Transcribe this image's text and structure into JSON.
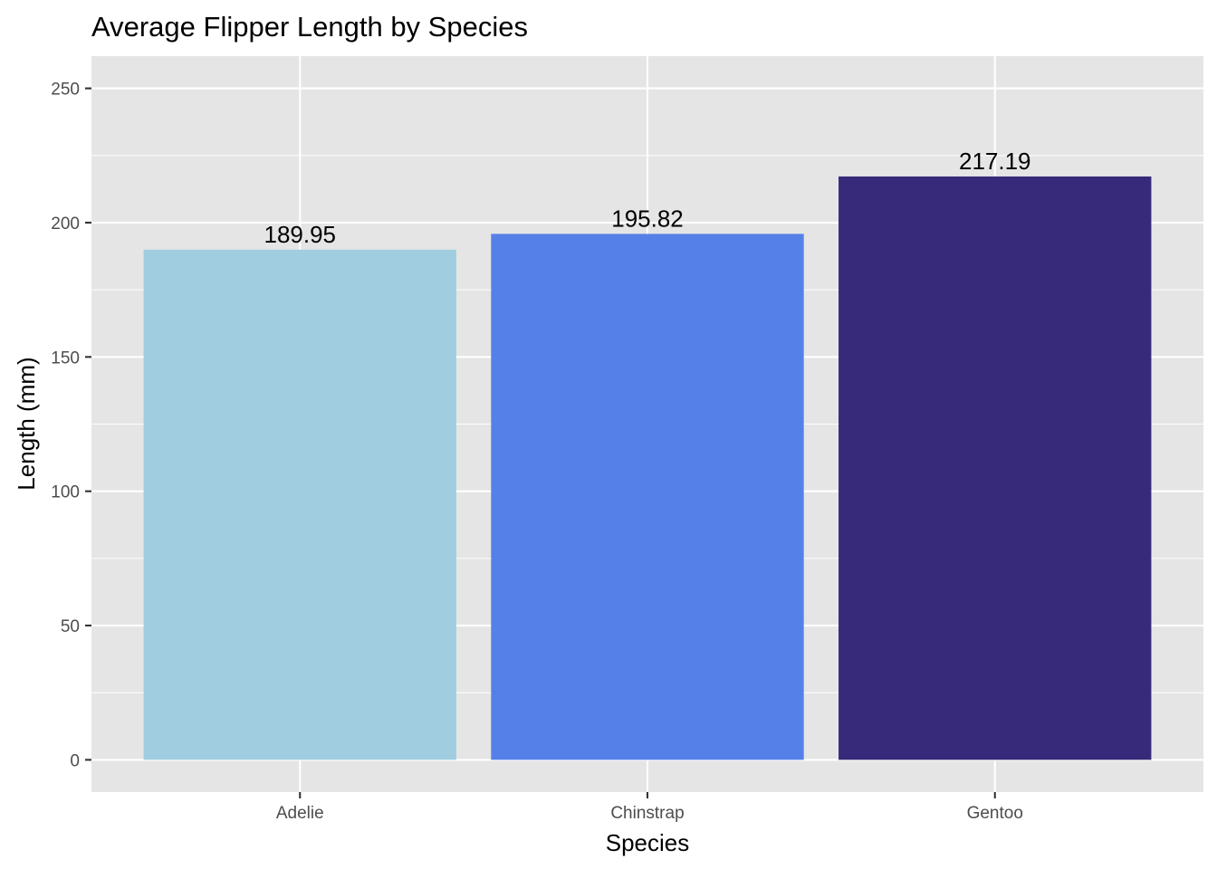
{
  "chart_data": {
    "type": "bar",
    "title": "Average Flipper Length by Species",
    "xlabel": "Species",
    "ylabel": "Length (mm)",
    "categories": [
      "Adelie",
      "Chinstrap",
      "Gentoo"
    ],
    "values": [
      189.95,
      195.82,
      217.19
    ],
    "data_labels": [
      "189.95",
      "195.82",
      "217.19"
    ],
    "colors": [
      "#a0cee0",
      "#5580e8",
      "#372a7a"
    ],
    "ylim": [
      -12,
      262
    ],
    "yticks": [
      0,
      50,
      100,
      150,
      200,
      250
    ],
    "ytick_labels": [
      "0",
      "50",
      "100",
      "150",
      "200",
      "250"
    ],
    "grid": true,
    "legend": "none",
    "panel_background": "#e5e5e5"
  }
}
